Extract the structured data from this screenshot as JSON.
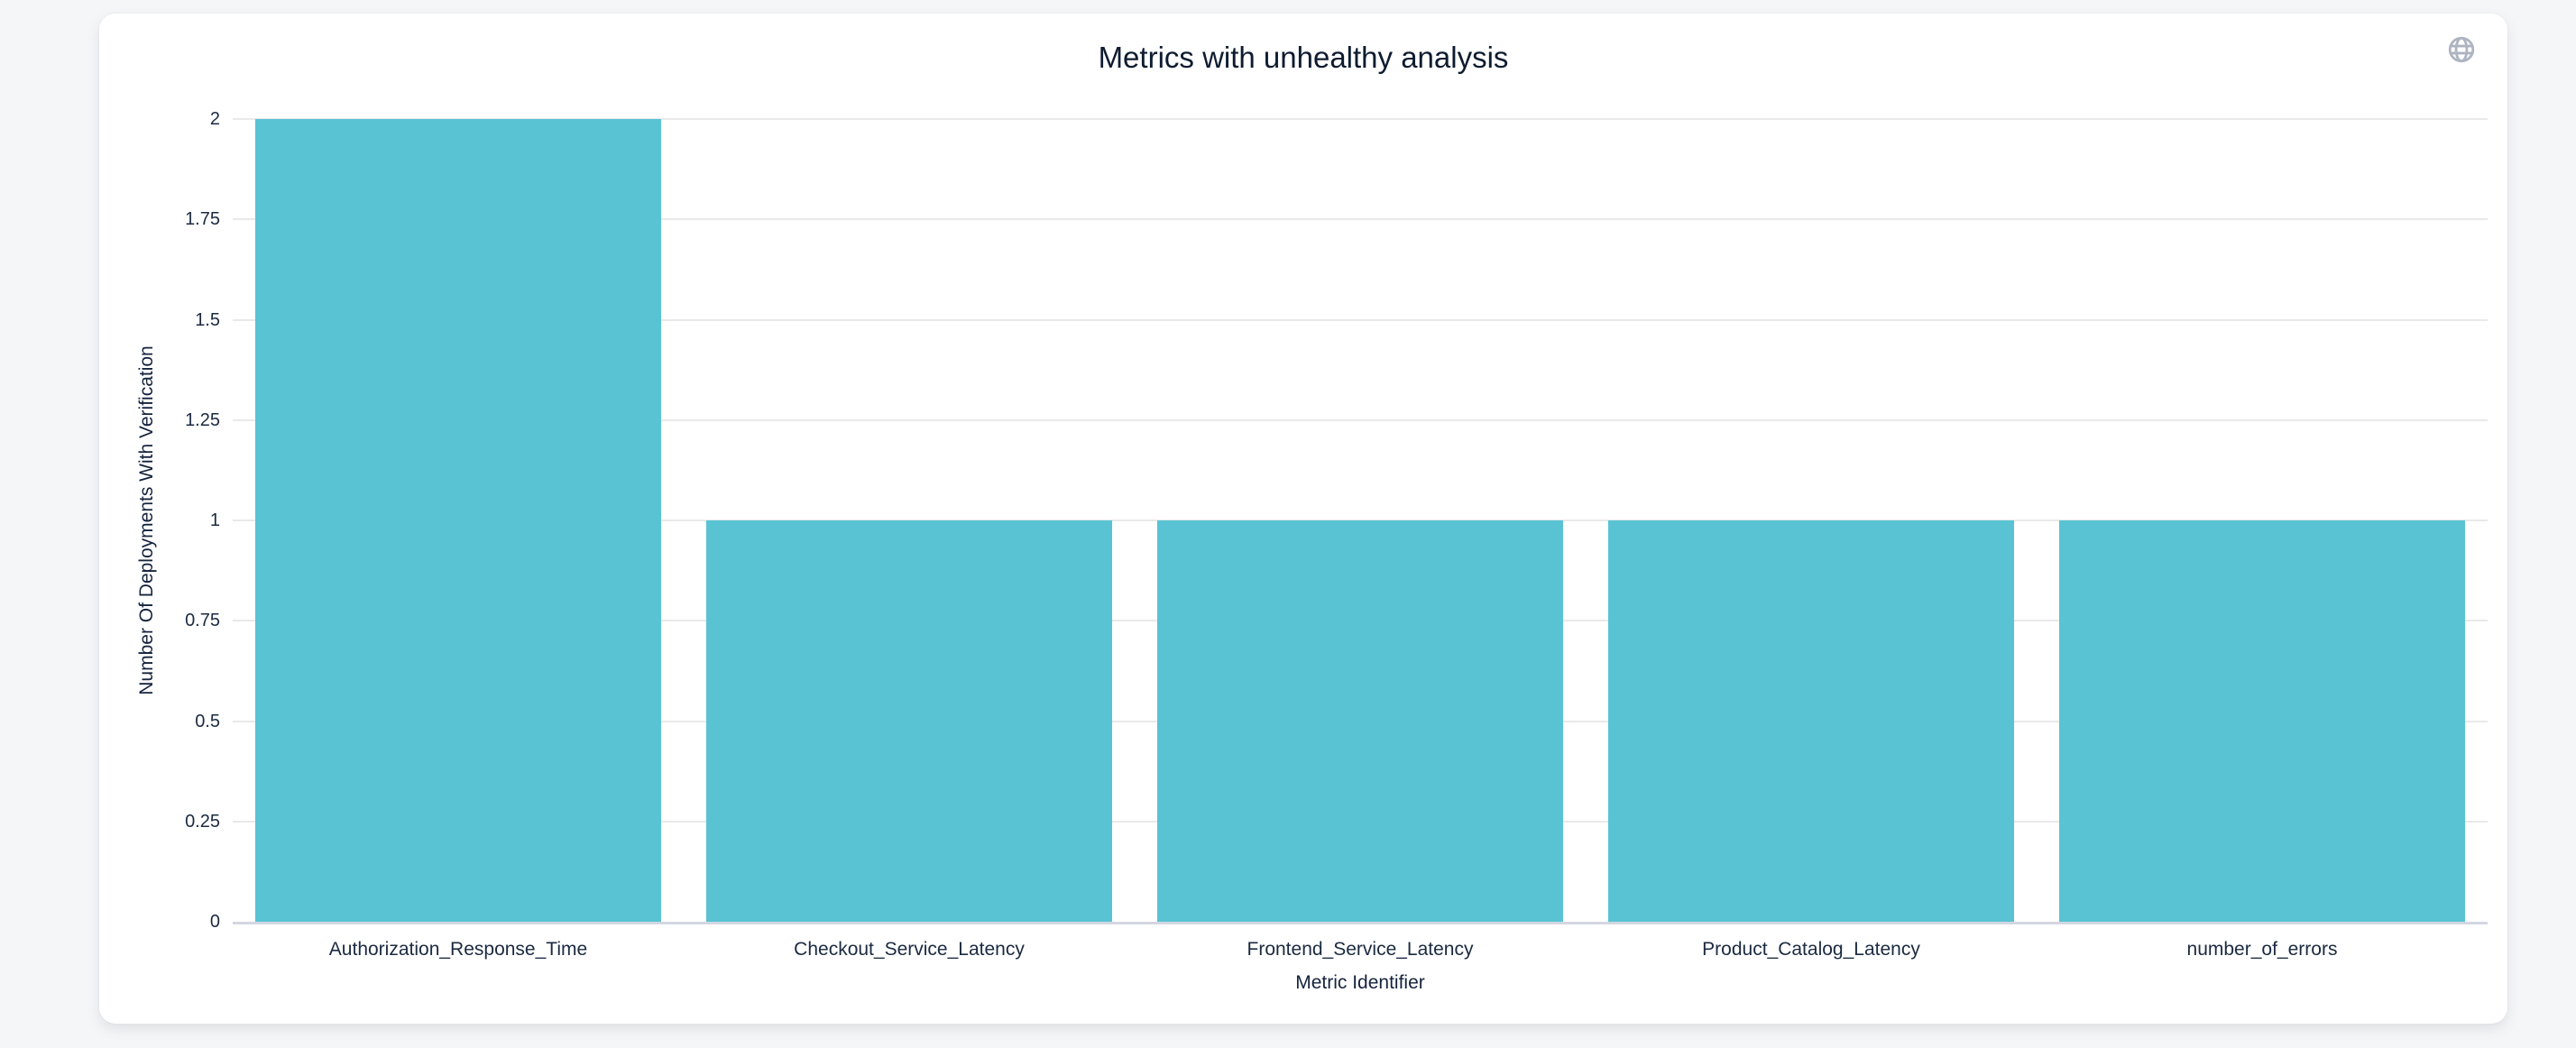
{
  "page": {
    "background_color": "#f5f6f8",
    "card_background": "#ffffff"
  },
  "header": {
    "globe_icon": "globe-icon",
    "globe_icon_color": "#aeb4c0"
  },
  "chart_data": {
    "type": "bar",
    "title": "Metrics with unhealthy analysis",
    "xlabel": "Metric Identifier",
    "ylabel": "Number Of Deployments With Verification",
    "categories": [
      "Authorization_Response_Time",
      "Checkout_Service_Latency",
      "Frontend_Service_Latency",
      "Product_Catalog_Latency",
      "number_of_errors"
    ],
    "values": [
      2,
      1,
      1,
      1,
      1
    ],
    "yticks": [
      0,
      0.25,
      0.5,
      0.75,
      1,
      1.25,
      1.5,
      1.75,
      2
    ],
    "ytick_labels": [
      "0",
      "0.25",
      "0.5",
      "0.75",
      "1",
      "1.25",
      "1.5",
      "1.75",
      "2"
    ],
    "ylim": [
      0,
      2
    ],
    "bar_color": "#59c3d3",
    "grid": true,
    "gridline_color": "#e9e9e9",
    "axis_line_color": "#d3d7e2",
    "text_color": "#1b2a41",
    "legend_position": "none",
    "bar_width_fraction": 0.9
  }
}
